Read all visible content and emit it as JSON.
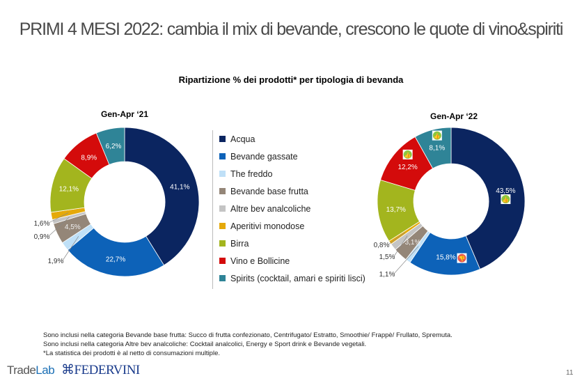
{
  "title": "PRIMI 4 MESI 2022: cambia il mix di bevande, crescono le quote di vino&spiriti",
  "chart_data": [
    {
      "type": "pie",
      "donut": true,
      "title": "Gen-Apr ‘21",
      "subtitle": "Ripartizione % dei prodotti* per tipologia di bevanda",
      "categories": [
        "Acqua",
        "Bevande gassate",
        "The freddo",
        "Bevande base frutta",
        "Altre bev analcoliche",
        "Aperitivi monodose",
        "Birra",
        "Vino e Bollicine",
        "Spirits (cocktail, amari e spiriti lisci)"
      ],
      "values": [
        41.1,
        22.7,
        1.9,
        4.5,
        0.9,
        1.6,
        12.1,
        8.9,
        6.2
      ],
      "labels": [
        "41,1%",
        "22,7%",
        "1,9%",
        "4,5%",
        "0,9%",
        "1,6%",
        "12,1%",
        "8,9%",
        "6,2%"
      ],
      "badges": []
    },
    {
      "type": "pie",
      "donut": true,
      "title": "Gen-Apr ‘22",
      "categories": [
        "Acqua",
        "Bevande gassate",
        "The freddo",
        "Bevande base frutta",
        "Altre bev analcoliche",
        "Aperitivi monodose",
        "Birra",
        "Vino e Bollicine",
        "Spirits (cocktail, amari e spiriti lisci)"
      ],
      "values": [
        43.5,
        15.8,
        1.1,
        3.1,
        1.5,
        0.8,
        13.7,
        12.2,
        8.1
      ],
      "labels": [
        "43,5%",
        "15,8%",
        "1,1%",
        "3,1%",
        "1,5%",
        "0,8%",
        "13,7%",
        "12,2%",
        "8,1%"
      ],
      "badges": {
        "Acqua": "thumbs-up",
        "Bevande gassate": "thumbs-down",
        "Vino e Bollicine": "thumbs-up",
        "Spirits (cocktail, amari e spiriti lisci)": "thumbs-up"
      }
    }
  ],
  "colors": [
    "#0b2560",
    "#0d62b8",
    "#bfe0f7",
    "#948678",
    "#c4c4c4",
    "#e5a90a",
    "#a3b51e",
    "#d40b0b",
    "#2f8497"
  ],
  "subtitle": "Ripartizione % dei prodotti* per tipologia di bevanda",
  "legend": [
    "Acqua",
    "Bevande gassate",
    "The freddo",
    "Bevande base frutta",
    "Altre bev analcoliche",
    "Aperitivi monodose",
    "Birra",
    "Vino e Bollicine",
    "Spirits (cocktail, amari e spiriti lisci)"
  ],
  "notes": [
    "Sono inclusi nella categoria Bevande base frutta: Succo di frutta confezionato, Centrifugato/ Estratto, Smoothie/ Frappè/ Frullato, Spremuta.",
    "Sono inclusi nella categoria Altre bev analcoliche: Cocktail analcolici, Energy e Sport drink e Bevande vegetali.",
    "*La statistica dei prodotti è al netto di consumazioni multiple."
  ],
  "footer": {
    "logo_tradelab": "TradeLab",
    "logo_federvini": "FEDERVINI",
    "page": "11"
  }
}
